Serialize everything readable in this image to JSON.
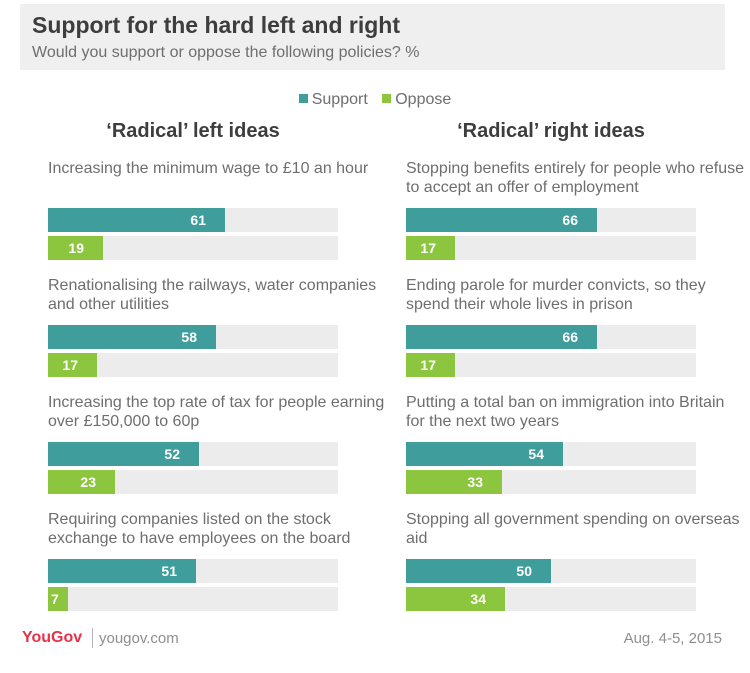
{
  "header": {
    "title": "Support for the hard left and right",
    "subtitle": "Would you support or oppose the following policies? %"
  },
  "legend": [
    {
      "label": "Support",
      "color": "#3f9e9b"
    },
    {
      "label": "Oppose",
      "color": "#8cc63f"
    }
  ],
  "footer": {
    "logo": "YouGov",
    "site": "yougov.com",
    "date": "Aug. 4-5, 2015"
  },
  "chart_data": [
    {
      "type": "bar",
      "orientation": "horizontal",
      "title": "‘Radical’ left ideas",
      "xlim": [
        0,
        100
      ],
      "categories": [
        "Increasing the minimum wage to £10 an hour",
        "Renationalising the railways, water companies and other utilities",
        "Increasing the top rate of tax for people earning over £150,000 to 60p",
        "Requiring companies listed on the stock exchange to have employees on the board"
      ],
      "series": [
        {
          "name": "Support",
          "values": [
            61,
            58,
            52,
            51
          ]
        },
        {
          "name": "Oppose",
          "values": [
            19,
            17,
            23,
            7
          ]
        }
      ]
    },
    {
      "type": "bar",
      "orientation": "horizontal",
      "title": "‘Radical’ right ideas",
      "xlim": [
        0,
        100
      ],
      "categories": [
        "Stopping benefits entirely for people who refuse to accept an offer of employment",
        "Ending parole for murder convicts, so they spend their whole lives in prison",
        "Putting a total ban on immigration into Britain for the next two years",
        "Stopping all government spending on overseas aid"
      ],
      "series": [
        {
          "name": "Support",
          "values": [
            66,
            66,
            54,
            50
          ]
        },
        {
          "name": "Oppose",
          "values": [
            17,
            17,
            33,
            34
          ]
        }
      ]
    }
  ]
}
